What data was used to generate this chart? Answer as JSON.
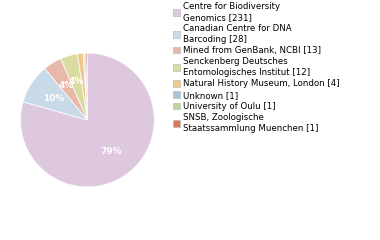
{
  "labels": [
    "Centre for Biodiversity\nGenomics [231]",
    "Canadian Centre for DNA\nBarcoding [28]",
    "Mined from GenBank, NCBI [13]",
    "Senckenberg Deutsches\nEntomologisches Institut [12]",
    "Natural History Museum, London [4]",
    "Unknown [1]",
    "University of Oulu [1]",
    "SNSB, Zoologische\nStaatssammlung Muenchen [1]"
  ],
  "values": [
    231,
    28,
    13,
    12,
    4,
    1,
    1,
    1
  ],
  "colors": [
    "#ddc8e0",
    "#c8dae8",
    "#e8b8a8",
    "#d8dca0",
    "#f0c888",
    "#a8c4d8",
    "#b8d8a0",
    "#d87858"
  ],
  "background_color": "#ffffff",
  "text_color": "#000000",
  "font_size": 6.5,
  "legend_font_size": 6.2
}
